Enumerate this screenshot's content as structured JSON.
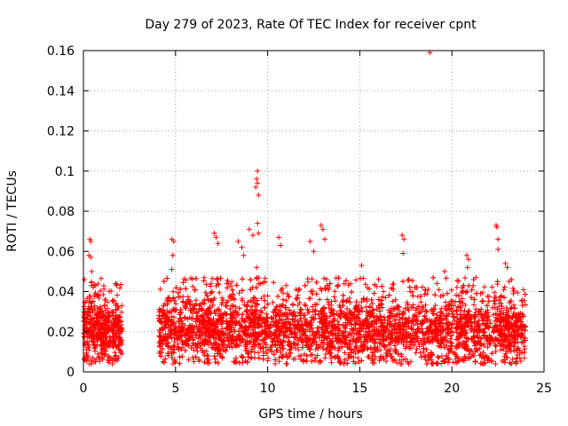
{
  "chart_data": {
    "type": "scatter",
    "title": "Day 279 of 2023, Rate Of TEC Index for receiver cpnt",
    "xlabel": "GPS time / hours",
    "ylabel": "ROTI / TECUs",
    "xlim": [
      0,
      25
    ],
    "ylim": [
      0,
      0.16
    ],
    "x_ticks": [
      "0",
      "5",
      "10",
      "15",
      "20",
      "25"
    ],
    "y_ticks": [
      "0",
      "0.02",
      "0.04",
      "0.06",
      "0.08",
      "0.1",
      "0.12",
      "0.14",
      "0.16"
    ],
    "x_tick_values": [
      0,
      5,
      10,
      15,
      20,
      25
    ],
    "y_tick_values": [
      0,
      0.02,
      0.04,
      0.06,
      0.08,
      0.1,
      0.12,
      0.14,
      0.16
    ],
    "grid": true,
    "marker": "+",
    "color": "#ff0000",
    "series": [
      {
        "name": "ROTI",
        "coverage_hours": [
          [
            0.0,
            2.1
          ],
          [
            4.1,
            24.0
          ]
        ],
        "typical_range": [
          0.008,
          0.035
        ],
        "notable_points": [
          {
            "x": 0.35,
            "y": 0.066
          },
          {
            "x": 0.4,
            "y": 0.065
          },
          {
            "x": 0.3,
            "y": 0.058
          },
          {
            "x": 0.4,
            "y": 0.057
          },
          {
            "x": 0.45,
            "y": 0.05
          },
          {
            "x": 1.75,
            "y": 0.044
          },
          {
            "x": 4.8,
            "y": 0.066
          },
          {
            "x": 4.9,
            "y": 0.065
          },
          {
            "x": 4.85,
            "y": 0.058
          },
          {
            "x": 4.8,
            "y": 0.051
          },
          {
            "x": 7.1,
            "y": 0.069
          },
          {
            "x": 7.2,
            "y": 0.067
          },
          {
            "x": 7.3,
            "y": 0.064
          },
          {
            "x": 8.4,
            "y": 0.065
          },
          {
            "x": 8.6,
            "y": 0.062
          },
          {
            "x": 8.7,
            "y": 0.058
          },
          {
            "x": 9.0,
            "y": 0.071
          },
          {
            "x": 9.2,
            "y": 0.068
          },
          {
            "x": 9.45,
            "y": 0.1
          },
          {
            "x": 9.4,
            "y": 0.096
          },
          {
            "x": 9.45,
            "y": 0.094
          },
          {
            "x": 9.35,
            "y": 0.092
          },
          {
            "x": 9.5,
            "y": 0.088
          },
          {
            "x": 9.45,
            "y": 0.074
          },
          {
            "x": 9.5,
            "y": 0.069
          },
          {
            "x": 9.4,
            "y": 0.052
          },
          {
            "x": 10.6,
            "y": 0.067
          },
          {
            "x": 10.7,
            "y": 0.063
          },
          {
            "x": 12.3,
            "y": 0.065
          },
          {
            "x": 12.5,
            "y": 0.06
          },
          {
            "x": 12.9,
            "y": 0.073
          },
          {
            "x": 13.0,
            "y": 0.071
          },
          {
            "x": 13.1,
            "y": 0.066
          },
          {
            "x": 15.1,
            "y": 0.053
          },
          {
            "x": 17.3,
            "y": 0.068
          },
          {
            "x": 17.4,
            "y": 0.066
          },
          {
            "x": 17.35,
            "y": 0.059
          },
          {
            "x": 18.1,
            "y": 0.042
          },
          {
            "x": 18.8,
            "y": 0.159
          },
          {
            "x": 19.6,
            "y": 0.05
          },
          {
            "x": 20.8,
            "y": 0.058
          },
          {
            "x": 20.9,
            "y": 0.056
          },
          {
            "x": 20.85,
            "y": 0.052
          },
          {
            "x": 21.3,
            "y": 0.047
          },
          {
            "x": 22.4,
            "y": 0.073
          },
          {
            "x": 22.45,
            "y": 0.072
          },
          {
            "x": 22.5,
            "y": 0.066
          },
          {
            "x": 22.5,
            "y": 0.061
          },
          {
            "x": 22.9,
            "y": 0.054
          },
          {
            "x": 23.0,
            "y": 0.052
          },
          {
            "x": 23.1,
            "y": 0.045
          }
        ]
      }
    ]
  }
}
